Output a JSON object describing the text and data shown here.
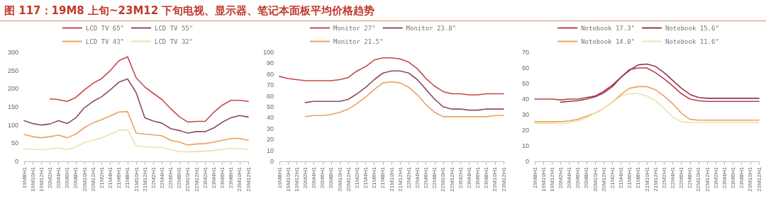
{
  "chart_data": [
    {
      "type": "line",
      "title": "图 117：19M8 上旬~23M12 下旬电视、显示器、笔记本面板平均价格趋势",
      "categories": [
        "19M8H1",
        "19M10H1",
        "19M12H1",
        "20M2H1",
        "20M4H1",
        "20M6H1",
        "20M8H1",
        "20M10H1",
        "20M12H1",
        "21M2H1",
        "21M4H1",
        "21M6H1",
        "21M8H1",
        "21M10H1",
        "21M12H1",
        "22M2H1",
        "22M4H1",
        "22M6H1",
        "22M8H1",
        "22M10H1",
        "22M12H1",
        "23M2H1",
        "23M4H1",
        "23M6H1",
        "23M8H1",
        "23M10H1",
        "23M12H1"
      ],
      "series": [
        {
          "name": "LCD TV 65\"",
          "color": "#c8474c",
          "values": [
            null,
            null,
            null,
            172,
            170,
            165,
            176,
            197,
            215,
            228,
            250,
            277,
            288,
            230,
            205,
            187,
            170,
            145,
            123,
            108,
            110,
            110,
            135,
            155,
            168,
            168,
            165
          ]
        },
        {
          "name": "LCD TV 55\"",
          "color": "#8e4a63",
          "values": [
            112,
            104,
            100,
            103,
            112,
            104,
            120,
            148,
            165,
            178,
            197,
            218,
            227,
            189,
            120,
            111,
            105,
            90,
            85,
            78,
            82,
            82,
            92,
            108,
            120,
            126,
            122
          ]
        },
        {
          "name": "LCD TV 43\"",
          "color": "#eaa261",
          "values": [
            74,
            68,
            65,
            68,
            72,
            65,
            75,
            93,
            106,
            115,
            125,
            136,
            137,
            78,
            75,
            73,
            70,
            58,
            53,
            45,
            48,
            49,
            53,
            58,
            63,
            63,
            58
          ]
        },
        {
          "name": "LCD TV 32\"",
          "color": "#ece3a6",
          "values": [
            35,
            33,
            32,
            34,
            37,
            32,
            40,
            52,
            58,
            65,
            75,
            85,
            87,
            43,
            40,
            39,
            38,
            32,
            27,
            26,
            27,
            28,
            30,
            33,
            36,
            35,
            32
          ]
        }
      ],
      "ylim": [
        0,
        300
      ],
      "yticks": [
        0,
        50,
        100,
        150,
        200,
        250,
        300
      ],
      "grid": false,
      "legend": "top",
      "marker": "none",
      "line_style": "solid"
    },
    {
      "type": "line",
      "categories": [
        "19M8H1",
        "19M10H1",
        "19M12H1",
        "20M2H1",
        "20M4H1",
        "20M6H1",
        "20M8H1",
        "20M10H1",
        "20M12H1",
        "21M2H1",
        "21M4H1",
        "21M6H1",
        "21M8H1",
        "21M10H1",
        "21M12H1",
        "22M2H1",
        "22M4H1",
        "22M6H1",
        "22M8H1",
        "22M10H1",
        "22M12H1",
        "23M2H1",
        "23M4H1",
        "23M6H1",
        "23M8H1",
        "23M10H1",
        "23M12H1"
      ],
      "series": [
        {
          "name": "Monitor 27\"",
          "color": "#c8474c",
          "values": [
            78,
            76,
            75,
            74,
            74,
            74,
            74,
            75,
            77,
            83,
            87,
            93,
            95,
            95,
            94,
            91,
            85,
            76,
            69,
            64,
            62,
            62,
            61,
            61,
            62,
            62,
            62
          ]
        },
        {
          "name": "Monitor 23.8\"",
          "color": "#8e4a63",
          "values": [
            null,
            null,
            null,
            54,
            55,
            55,
            55,
            55,
            57,
            62,
            68,
            75,
            81,
            83,
            83,
            81,
            75,
            66,
            57,
            50,
            48,
            48,
            47,
            47,
            48,
            48,
            48
          ]
        },
        {
          "name": "Monitor 21.5\"",
          "color": "#eaa261",
          "values": [
            null,
            null,
            null,
            41,
            42,
            42,
            43,
            45,
            48,
            53,
            59,
            66,
            72,
            73,
            72,
            68,
            61,
            52,
            45,
            41,
            41,
            41,
            41,
            41,
            41,
            42,
            42
          ]
        }
      ],
      "ylim": [
        0,
        100
      ],
      "yticks": [
        0,
        10,
        20,
        30,
        40,
        50,
        60,
        70,
        80,
        90,
        100
      ],
      "grid": false,
      "legend": "top",
      "marker": "none",
      "line_style": "solid"
    },
    {
      "type": "line",
      "categories": [
        "19M8H1",
        "19M10H1",
        "19M12H1",
        "20M2H1",
        "20M4H1",
        "20M6H1",
        "20M8H1",
        "20M10H1",
        "20M12H1",
        "21M2H1",
        "21M4H1",
        "21M6H1",
        "21M8H1",
        "21M10H1",
        "21M12H1",
        "22M2H1",
        "22M4H1",
        "22M6H1",
        "22M8H1",
        "22M10H1",
        "22M12H1",
        "23M2H1",
        "23M4H1",
        "23M6H1",
        "23M8H1",
        "23M10H1",
        "23M12H1"
      ],
      "series": [
        {
          "name": "Notebook 17.3\"",
          "color": "#b9404a",
          "values": [
            40,
            40,
            40,
            39.5,
            40,
            40,
            41,
            42,
            45,
            49,
            54,
            59,
            60,
            60,
            57,
            53,
            48.5,
            43.5,
            40,
            39,
            38.5,
            38.5,
            38.5,
            38.5,
            38.5,
            38.5,
            38.5
          ]
        },
        {
          "name": "Notebook 15.6\"",
          "color": "#8b3a55",
          "values": [
            null,
            null,
            null,
            38,
            38.5,
            39,
            40,
            41.5,
            44,
            48,
            54,
            58.5,
            62,
            62.5,
            61,
            57,
            52,
            47,
            43,
            41,
            40.5,
            40.5,
            40.5,
            40.5,
            40.5,
            40.5,
            40.5
          ]
        },
        {
          "name": "Notebook 14.0\"",
          "color": "#eaa261",
          "values": [
            25.5,
            25.5,
            25.5,
            25.5,
            26,
            27,
            29,
            31,
            34,
            38,
            43,
            47,
            48,
            48,
            46,
            42,
            37,
            31,
            27,
            26.5,
            26.5,
            26.5,
            26.5,
            26.5,
            26.5,
            26.5,
            26.5
          ]
        },
        {
          "name": "Notebook 11.6\"",
          "color": "#ece3a6",
          "values": [
            24.5,
            24.5,
            24.5,
            24,
            25,
            26,
            28,
            31,
            34,
            38,
            42,
            43.5,
            43.5,
            42,
            39,
            34,
            28.5,
            25.5,
            25,
            25,
            25,
            25,
            25,
            25,
            25,
            25,
            25
          ]
        }
      ],
      "ylim": [
        0,
        70
      ],
      "yticks": [
        0,
        10,
        20,
        30,
        40,
        50,
        60,
        70
      ],
      "grid": false,
      "legend": "top",
      "marker": "none",
      "line_style": "solid"
    }
  ]
}
